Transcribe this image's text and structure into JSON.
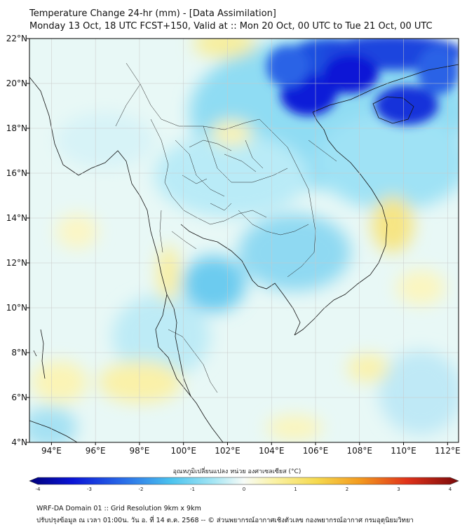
{
  "header": {
    "title": "Temperature Change 24-hr (mm) - [Data Assimilation]",
    "subtitle": "Monday 13 Oct, 18 UTC FCST+150, Valid at :: Mon 20 Oct, 00 UTC to Tue 21 Oct, 00 UTC"
  },
  "map": {
    "lon_range": [
      93,
      112.5
    ],
    "lat_range": [
      4,
      22
    ],
    "lon_labels": [
      "94°E",
      "96°E",
      "98°E",
      "100°E",
      "102°E",
      "104°E",
      "106°E",
      "108°E",
      "110°E",
      "112°E"
    ],
    "lat_labels": [
      "4°N",
      "6°N",
      "8°N",
      "10°N",
      "12°N",
      "14°N",
      "16°N",
      "18°N",
      "20°N",
      "22°N"
    ],
    "colors": {
      "deep_blue": "#0a14d6",
      "mid_blue": "#2f7fe6",
      "cyan": "#6fd4f2",
      "light_cyan": "#bfeef8",
      "pale": "#eefaf6",
      "light_yellow": "#fbf6b8",
      "yellow": "#f7ea80"
    }
  },
  "colorbar": {
    "label": "อุณหภูมิเปลี่ยนแปลง หน่วย องศาเซลเซียส (°C)",
    "ticks": [
      "-4",
      "-3",
      "-2",
      "-1",
      "0",
      "1",
      "2",
      "3",
      "4"
    ],
    "min": -4,
    "max": 4
  },
  "footer": {
    "line1": "WRF-DA Domain 01 :: Grid Resolution 9km x 9km",
    "line2": "ปรับปรุงข้อมูล ณ เวลา 01:00น. วัน อ. ที่ 14 ต.ค. 2568 -- © ส่วนพยากรณ์อากาศเชิงตัวเลข กองพยากรณ์อากาศ กรมอุตุนิยมวิทยา"
  }
}
